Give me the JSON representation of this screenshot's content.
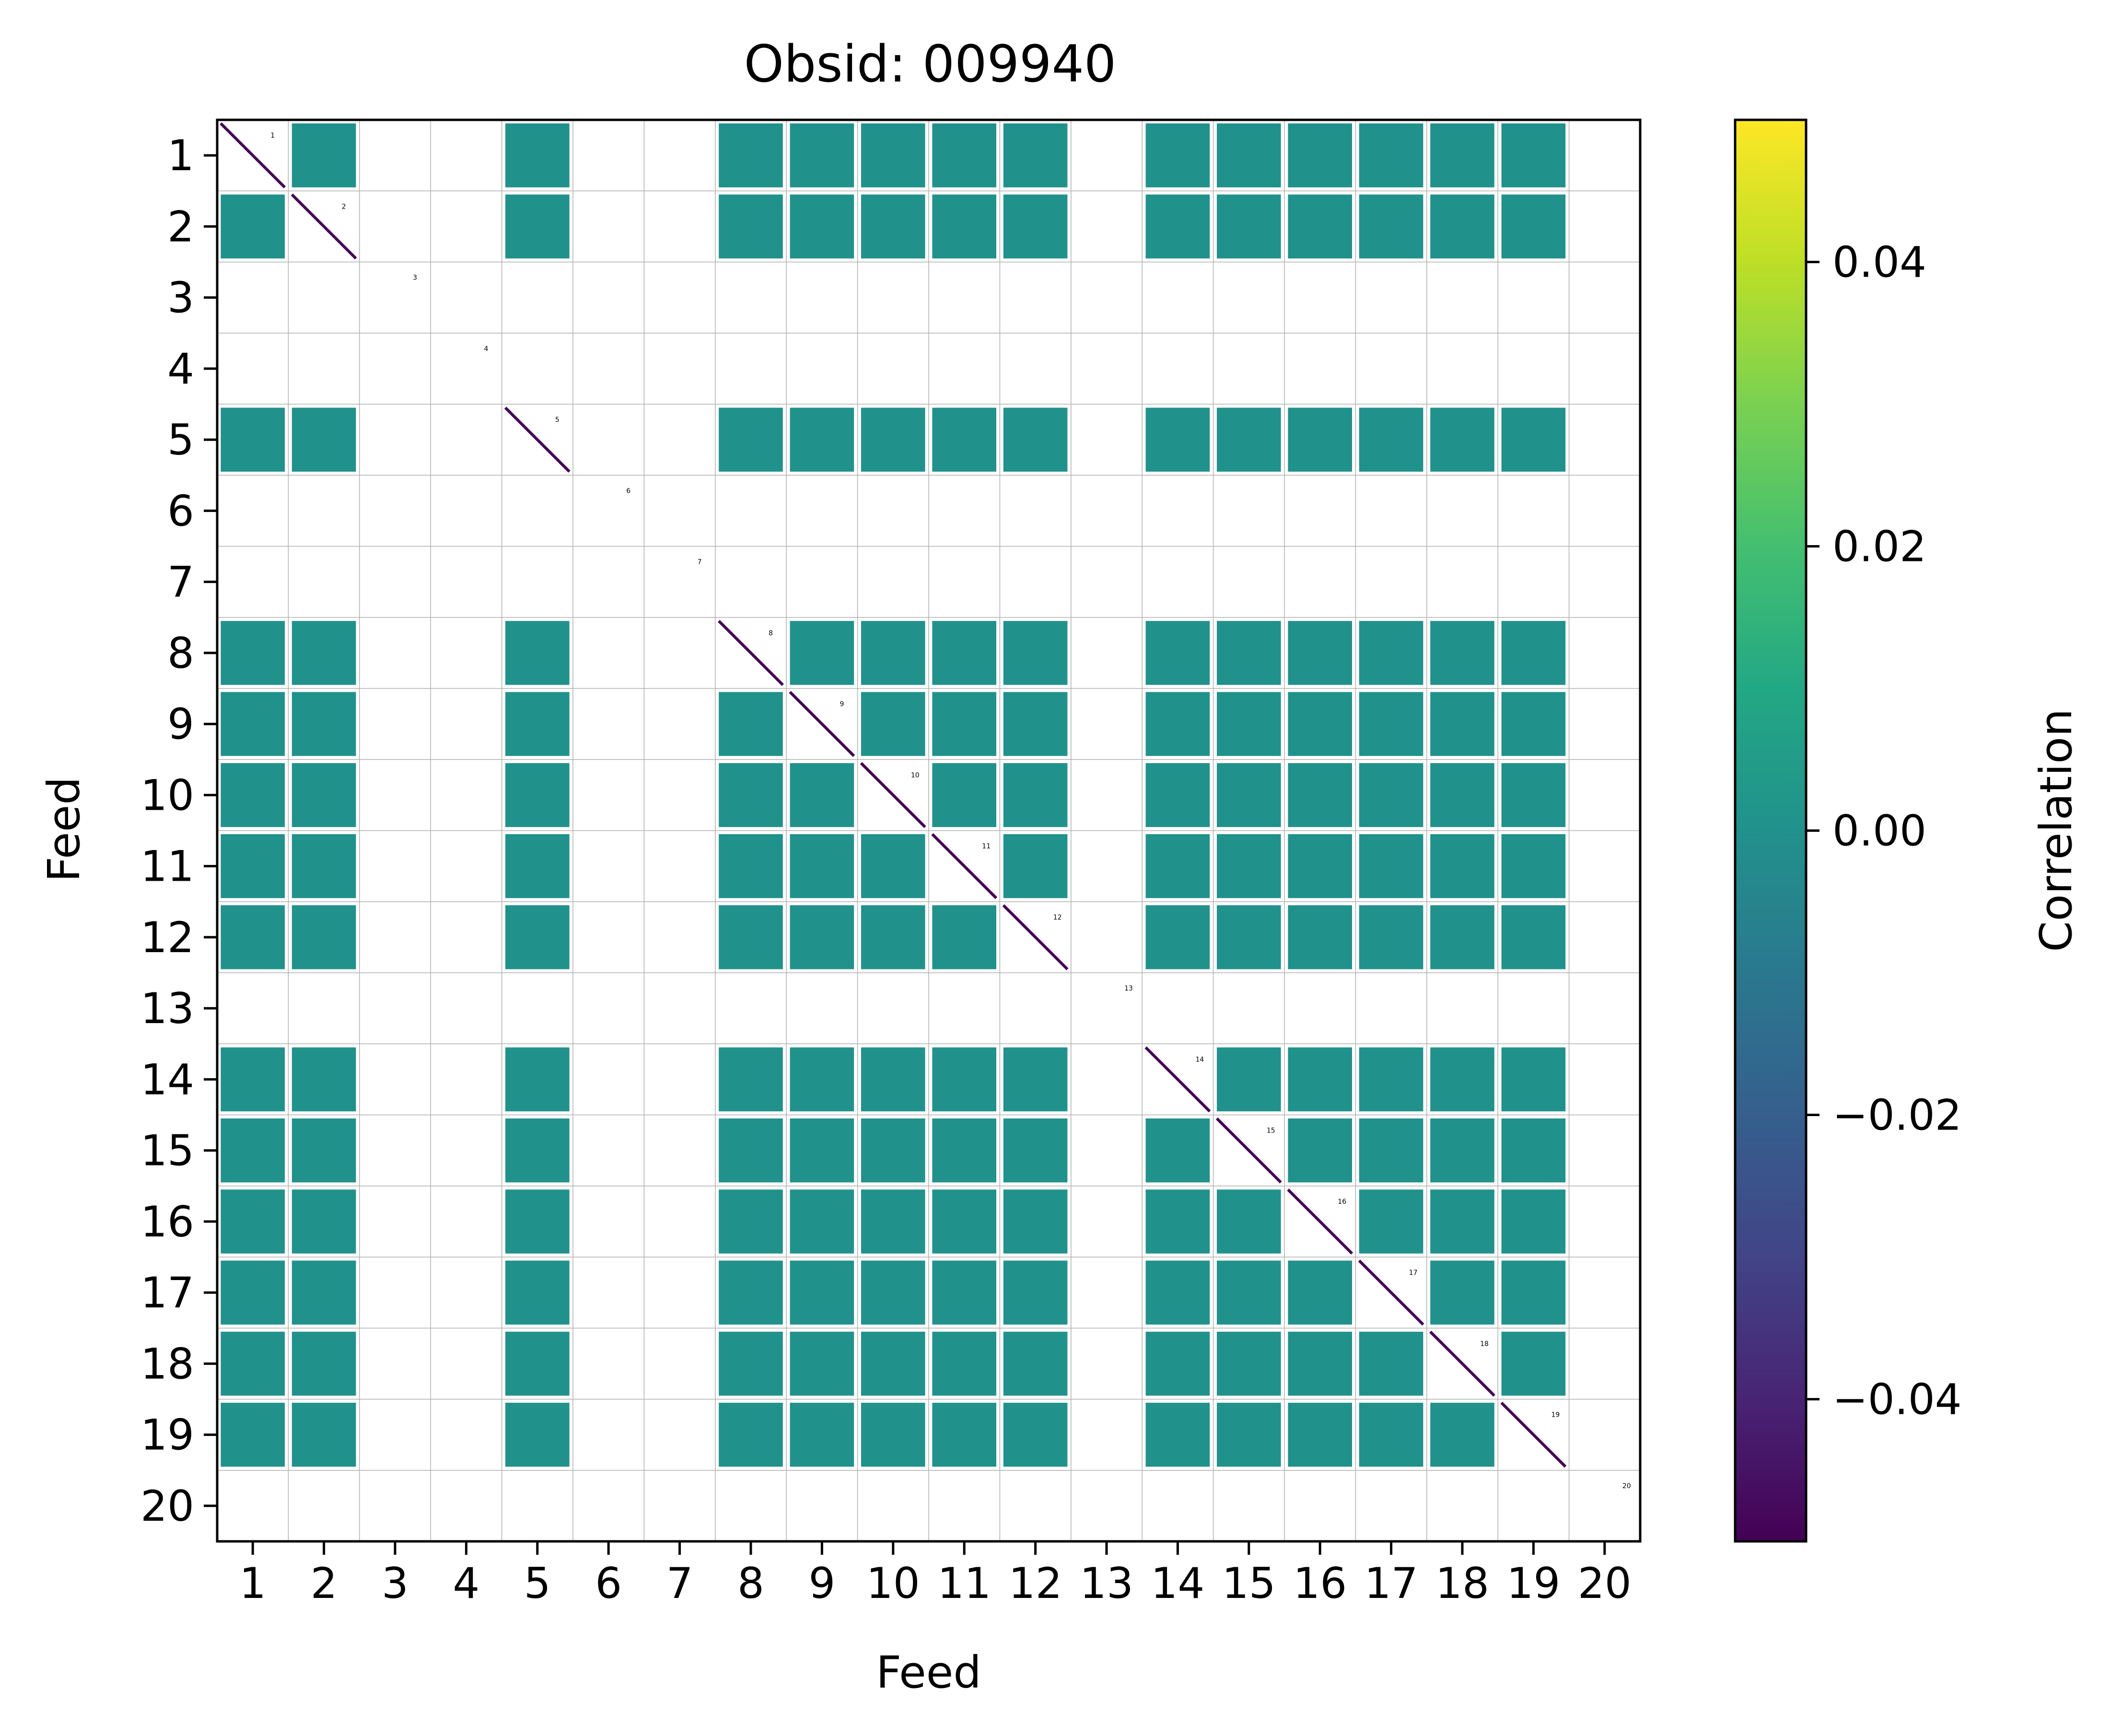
{
  "chart_data": {
    "type": "heatmap",
    "title": "Obsid: 009940",
    "xlabel": "Feed",
    "ylabel": "Feed",
    "xticks": [
      "1",
      "2",
      "3",
      "4",
      "5",
      "6",
      "7",
      "8",
      "9",
      "10",
      "11",
      "12",
      "13",
      "14",
      "15",
      "16",
      "17",
      "18",
      "19",
      "20"
    ],
    "yticks": [
      "1",
      "2",
      "3",
      "4",
      "5",
      "6",
      "7",
      "8",
      "9",
      "10",
      "11",
      "12",
      "13",
      "14",
      "15",
      "16",
      "17",
      "18",
      "19",
      "20"
    ],
    "colorbar": {
      "label": "Correlation",
      "range": [
        -0.05,
        0.05
      ],
      "ticks": [
        -0.04,
        -0.02,
        0.0,
        0.02,
        0.04
      ],
      "tick_labels": [
        "−0.04",
        "−0.02",
        "0.00",
        "0.02",
        "0.04"
      ],
      "colormap": "viridis"
    },
    "feed_annotations": [
      "1",
      "2",
      "3",
      "4",
      "5",
      "6",
      "7",
      "8",
      "9",
      "10",
      "11",
      "12",
      "13",
      "14",
      "15",
      "16",
      "17",
      "18",
      "19",
      "20"
    ],
    "active_feeds": [
      1,
      2,
      5,
      8,
      9,
      10,
      11,
      12,
      14,
      15,
      16,
      17,
      18,
      19
    ],
    "inactive_feeds": [
      3,
      4,
      6,
      7,
      13,
      20
    ],
    "off_diagonal_value": 0.0,
    "diagonal_value": -0.05,
    "colors": {
      "cell": "#21918c",
      "diagonal": "#440154",
      "grid": "#b0b0b0",
      "frame": "#000000"
    }
  }
}
